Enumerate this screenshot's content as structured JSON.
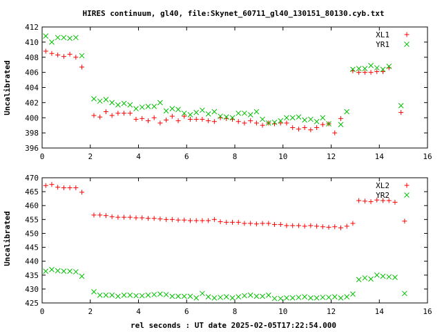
{
  "title": "HIRES continuum, gl40, file:Skynet_60711_gl40_130151_80130.cyb.txt",
  "xlabel": "rel seconds : UT date 2025-02-05T17:22:54.000",
  "colors": {
    "red": "#ff0000",
    "green": "#00c000",
    "axis": "#000000"
  },
  "chart_data": [
    {
      "type": "scatter",
      "ylabel": "Uncalibrated",
      "xlim": [
        0,
        16
      ],
      "ylim": [
        396,
        412
      ],
      "xticks": [
        0,
        2,
        4,
        6,
        8,
        10,
        12,
        14,
        16
      ],
      "yticks": [
        396,
        398,
        400,
        402,
        404,
        406,
        408,
        410,
        412
      ],
      "legend_position": "top-right",
      "series": [
        {
          "name": "XL1",
          "marker": "plus",
          "color": "red",
          "x": [
            0.15,
            0.4,
            0.65,
            0.9,
            1.15,
            1.4,
            1.65,
            1.9,
            2.15,
            2.4,
            2.65,
            2.9,
            3.15,
            3.4,
            3.65,
            3.9,
            4.15,
            4.4,
            4.65,
            4.9,
            5.15,
            5.4,
            5.65,
            5.9,
            6.15,
            6.4,
            6.65,
            6.9,
            7.15,
            7.4,
            7.65,
            7.9,
            8.15,
            8.4,
            8.65,
            8.9,
            9.15,
            9.4,
            9.65,
            9.9,
            10.15,
            10.4,
            10.65,
            10.9,
            11.15,
            11.4,
            11.65,
            11.9,
            12.15,
            12.4,
            12.65,
            12.9,
            13.15,
            13.4,
            13.65,
            13.9,
            14.15,
            14.4,
            14.65,
            14.9,
            15.05
          ],
          "y": [
            408.8,
            408.5,
            408.3,
            408.1,
            408.4,
            408.0,
            406.7,
            null,
            400.3,
            400.1,
            400.8,
            400.3,
            400.6,
            400.6,
            400.6,
            399.8,
            399.9,
            399.6,
            400.0,
            399.3,
            399.7,
            400.2,
            399.6,
            400.2,
            399.8,
            399.8,
            399.8,
            399.6,
            399.5,
            400.0,
            399.9,
            399.8,
            399.5,
            399.3,
            399.6,
            399.3,
            399.0,
            399.3,
            399.2,
            399.3,
            399.3,
            398.7,
            398.5,
            398.7,
            398.4,
            398.7,
            399.1,
            399.2,
            398.0,
            399.9,
            null,
            406.2,
            406.0,
            406.0,
            406.0,
            406.1,
            406.1,
            406.6,
            null,
            400.7,
            null
          ]
        },
        {
          "name": "YR1",
          "marker": "cross",
          "color": "green",
          "x": [
            0.15,
            0.4,
            0.65,
            0.9,
            1.15,
            1.4,
            1.65,
            1.9,
            2.15,
            2.4,
            2.65,
            2.9,
            3.15,
            3.4,
            3.65,
            3.9,
            4.15,
            4.4,
            4.65,
            4.9,
            5.15,
            5.4,
            5.65,
            5.9,
            6.15,
            6.4,
            6.65,
            6.9,
            7.15,
            7.4,
            7.65,
            7.9,
            8.15,
            8.4,
            8.65,
            8.9,
            9.15,
            9.4,
            9.65,
            9.9,
            10.15,
            10.4,
            10.65,
            10.9,
            11.15,
            11.4,
            11.65,
            11.9,
            12.15,
            12.4,
            12.65,
            12.9,
            13.15,
            13.4,
            13.65,
            13.9,
            14.15,
            14.4,
            14.65,
            14.9,
            15.05
          ],
          "y": [
            410.8,
            410.0,
            410.6,
            410.6,
            410.5,
            410.6,
            408.2,
            null,
            402.5,
            402.2,
            402.4,
            402.0,
            401.7,
            401.9,
            401.7,
            401.2,
            401.4,
            401.5,
            401.5,
            402.0,
            400.9,
            401.2,
            401.1,
            400.6,
            400.4,
            400.7,
            401.0,
            400.5,
            400.8,
            400.2,
            400.1,
            400.0,
            400.6,
            400.6,
            400.4,
            400.8,
            399.8,
            399.3,
            399.4,
            399.6,
            400.0,
            400.0,
            400.1,
            399.7,
            399.8,
            399.5,
            400.0,
            399.2,
            null,
            399.1,
            400.8,
            406.4,
            406.5,
            406.5,
            406.9,
            406.6,
            406.4,
            406.8,
            null,
            401.6,
            null
          ]
        }
      ]
    },
    {
      "type": "scatter",
      "ylabel": "Uncalibrated",
      "xlim": [
        0,
        16
      ],
      "ylim": [
        425,
        470
      ],
      "xticks": [
        0,
        2,
        4,
        6,
        8,
        10,
        12,
        14,
        16
      ],
      "yticks": [
        425,
        430,
        435,
        440,
        445,
        450,
        455,
        460,
        465,
        470
      ],
      "legend_position": "top-right",
      "series": [
        {
          "name": "XL2",
          "marker": "plus",
          "color": "red",
          "x": [
            0.15,
            0.4,
            0.65,
            0.9,
            1.15,
            1.4,
            1.65,
            1.9,
            2.15,
            2.4,
            2.65,
            2.9,
            3.15,
            3.4,
            3.65,
            3.9,
            4.15,
            4.4,
            4.65,
            4.9,
            5.15,
            5.4,
            5.65,
            5.9,
            6.15,
            6.4,
            6.65,
            6.9,
            7.15,
            7.4,
            7.65,
            7.9,
            8.15,
            8.4,
            8.65,
            8.9,
            9.15,
            9.4,
            9.65,
            9.9,
            10.15,
            10.4,
            10.65,
            10.9,
            11.15,
            11.4,
            11.65,
            11.9,
            12.15,
            12.4,
            12.65,
            12.9,
            13.15,
            13.4,
            13.65,
            13.9,
            14.15,
            14.4,
            14.65,
            14.9,
            15.05
          ],
          "y": [
            467.2,
            467.6,
            466.6,
            466.4,
            466.4,
            466.4,
            464.8,
            null,
            456.6,
            456.6,
            456.4,
            456.0,
            455.8,
            455.8,
            455.8,
            455.6,
            455.6,
            455.4,
            455.4,
            455.2,
            455.0,
            455.0,
            454.8,
            454.8,
            454.6,
            454.6,
            454.6,
            454.6,
            455.0,
            454.2,
            454.0,
            454.0,
            454.0,
            453.6,
            453.6,
            453.4,
            453.6,
            453.6,
            453.2,
            453.2,
            452.8,
            452.8,
            452.8,
            452.6,
            452.8,
            452.6,
            452.4,
            452.2,
            452.4,
            452.0,
            452.6,
            453.6,
            461.8,
            461.6,
            461.4,
            462.0,
            461.8,
            461.8,
            461.2,
            null,
            454.4
          ]
        },
        {
          "name": "YR2",
          "marker": "cross",
          "color": "green",
          "x": [
            0.15,
            0.4,
            0.65,
            0.9,
            1.15,
            1.4,
            1.65,
            1.9,
            2.15,
            2.4,
            2.65,
            2.9,
            3.15,
            3.4,
            3.65,
            3.9,
            4.15,
            4.4,
            4.65,
            4.9,
            5.15,
            5.4,
            5.65,
            5.9,
            6.15,
            6.4,
            6.65,
            6.9,
            7.15,
            7.4,
            7.65,
            7.9,
            8.15,
            8.4,
            8.65,
            8.9,
            9.15,
            9.4,
            9.65,
            9.9,
            10.15,
            10.4,
            10.65,
            10.9,
            11.15,
            11.4,
            11.65,
            11.9,
            12.15,
            12.4,
            12.65,
            12.9,
            13.15,
            13.4,
            13.65,
            13.9,
            14.15,
            14.4,
            14.65,
            14.9,
            15.05
          ],
          "y": [
            436.4,
            437.0,
            436.6,
            436.4,
            436.4,
            436.2,
            434.6,
            null,
            429.0,
            427.8,
            427.8,
            427.8,
            427.4,
            427.8,
            427.8,
            427.6,
            427.6,
            427.8,
            428.0,
            428.2,
            428.0,
            427.4,
            427.4,
            427.4,
            427.4,
            426.8,
            428.4,
            427.2,
            426.8,
            427.0,
            427.2,
            426.8,
            427.2,
            427.6,
            427.8,
            427.4,
            427.4,
            427.8,
            426.6,
            426.6,
            426.8,
            426.8,
            427.0,
            427.2,
            426.8,
            426.8,
            427.0,
            427.0,
            427.2,
            426.8,
            427.2,
            428.2,
            433.4,
            434.0,
            433.6,
            435.0,
            434.6,
            434.4,
            434.2,
            null,
            428.4
          ]
        }
      ]
    }
  ]
}
